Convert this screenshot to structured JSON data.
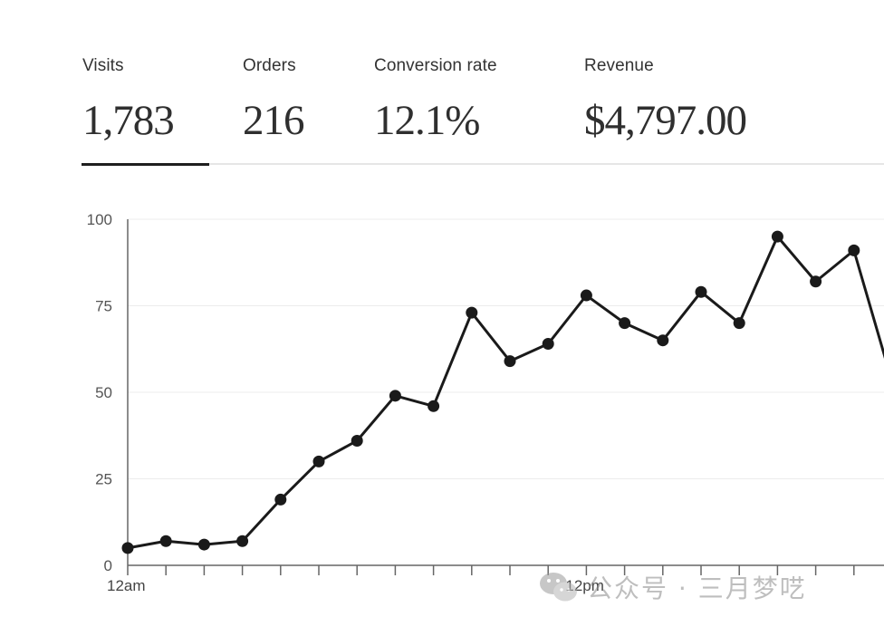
{
  "stats": [
    {
      "label": "Visits",
      "value": "1,783"
    },
    {
      "label": "Orders",
      "value": "216"
    },
    {
      "label": "Conversion rate",
      "value": "12.1%"
    },
    {
      "label": "Revenue",
      "value": "$4,797.00"
    }
  ],
  "watermark": {
    "text": "公众号 · 三月梦呓",
    "icon": "wechat-icon"
  },
  "chart_data": {
    "type": "line",
    "series": [
      {
        "values": [
          5,
          7,
          6,
          7,
          19,
          30,
          36,
          49,
          46,
          73,
          59,
          64,
          78,
          70,
          65,
          79,
          70,
          95,
          82,
          91,
          53
        ]
      }
    ],
    "x_tick_labels": [
      {
        "index": 0,
        "label": "12am"
      },
      {
        "index": 12,
        "label": "12pm"
      }
    ],
    "y_ticks": [
      0,
      25,
      50,
      75,
      100
    ],
    "ylim": [
      0,
      100
    ],
    "grid": true,
    "colors": {
      "line": "#1a1a1a",
      "grid": "#ececec",
      "axis": "#666666"
    }
  }
}
